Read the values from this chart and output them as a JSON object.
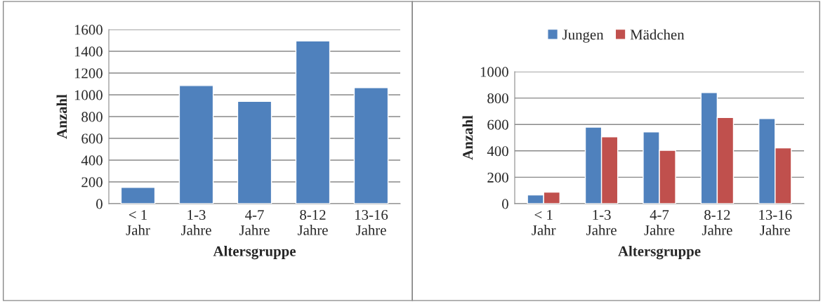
{
  "chart_data": [
    {
      "type": "bar",
      "xlabel": "Altersgruppe",
      "ylabel": "Anzahl",
      "categories": [
        "< 1\nJahr",
        "1-3\nJahre",
        "4-7\nJahre",
        "8-12\nJahre",
        "13-16\nJahre"
      ],
      "series": [
        {
          "color": "#4f81bd",
          "values": [
            150,
            1085,
            940,
            1495,
            1065
          ]
        }
      ],
      "ylim": [
        0,
        1600
      ],
      "yticks": [
        0,
        200,
        400,
        600,
        800,
        1000,
        1200,
        1400,
        1600
      ],
      "grid": "y",
      "legend": false
    },
    {
      "type": "bar",
      "xlabel": "Altersgruppe",
      "ylabel": "Anzahl",
      "categories": [
        "< 1\nJahr",
        "1-3\nJahre",
        "4-7\nJahre",
        "8-12\nJahre",
        "13-16\nJahre"
      ],
      "series": [
        {
          "name": "Jungen",
          "color": "#4f81bd",
          "values": [
            66,
            580,
            543,
            842,
            644
          ]
        },
        {
          "name": "Mädchen",
          "color": "#c0504d",
          "values": [
            87,
            507,
            404,
            653,
            423
          ]
        }
      ],
      "ylim": [
        0,
        1000
      ],
      "yticks": [
        0,
        200,
        400,
        600,
        800,
        1000
      ],
      "grid": "y",
      "legend": "top"
    }
  ]
}
